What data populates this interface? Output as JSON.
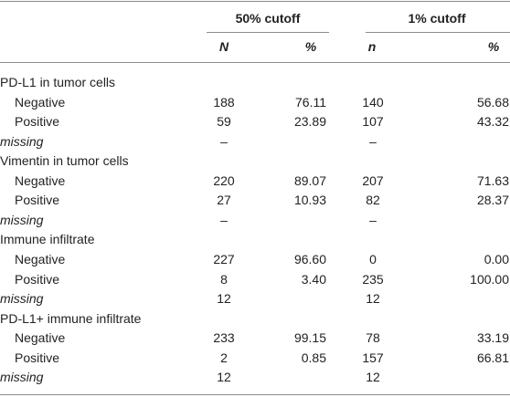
{
  "table": {
    "column_groups": [
      "50% cutoff",
      "1% cutoff"
    ],
    "columns": [
      "N",
      "%",
      "n",
      "%"
    ],
    "sections": [
      {
        "title": "PD-L1 in tumor cells",
        "rows": [
          [
            "Negative",
            "188",
            "76.11",
            "140",
            "56.68"
          ],
          [
            "Positive",
            "59",
            "23.89",
            "107",
            "43.32"
          ],
          [
            "missing",
            "–",
            "",
            "–",
            ""
          ]
        ]
      },
      {
        "title": "Vimentin in tumor cells",
        "rows": [
          [
            "Negative",
            "220",
            "89.07",
            "207",
            "71.63"
          ],
          [
            "Positive",
            "27",
            "10.93",
            "82",
            "28.37"
          ],
          [
            "missing",
            "–",
            "",
            "–",
            ""
          ]
        ]
      },
      {
        "title": "Immune infiltrate",
        "rows": [
          [
            "Negative",
            "227",
            "96.60",
            "0",
            "0.00"
          ],
          [
            "Positive",
            "8",
            "3.40",
            "235",
            "100.00"
          ],
          [
            "missing",
            "12",
            "",
            "12",
            ""
          ]
        ]
      },
      {
        "title": "PD-L1+ immune infiltrate",
        "rows": [
          [
            "Negative",
            "233",
            "99.15",
            "78",
            "33.19"
          ],
          [
            "Positive",
            "2",
            "0.85",
            "157",
            "66.81"
          ],
          [
            "missing",
            "12",
            "",
            "12",
            ""
          ]
        ]
      }
    ]
  }
}
